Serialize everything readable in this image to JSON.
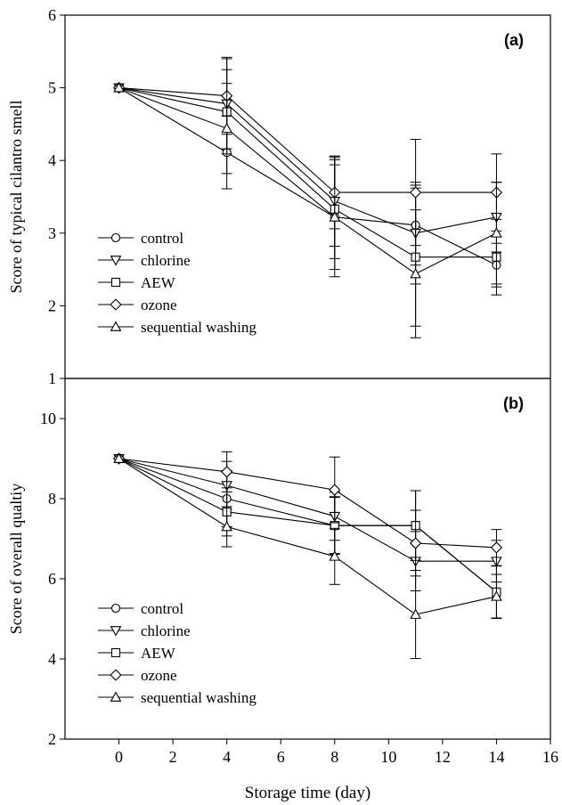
{
  "chart_data": [
    {
      "type": "line",
      "panel_label": "(a)",
      "xlabel": "",
      "ylabel": "Score of typical cilantro smell",
      "xlim": [
        -2,
        16
      ],
      "ylim": [
        1,
        6
      ],
      "yticks": [
        1,
        2,
        3,
        4,
        5,
        6
      ],
      "x": [
        0,
        4,
        8,
        11,
        14
      ],
      "legend_position": "bottom-left",
      "series": [
        {
          "name": "control",
          "marker": "circle",
          "values": [
            5,
            4.11,
            3.22,
            3.11,
            2.56
          ],
          "errors": [
            0,
            0.5,
            0.72,
            0.55,
            0.3
          ]
        },
        {
          "name": "chlorine",
          "marker": "triangle-down",
          "values": [
            5,
            4.78,
            3.44,
            3.0,
            3.22
          ],
          "errors": [
            0,
            0.62,
            0.62,
            0.7,
            0.48
          ]
        },
        {
          "name": "AEW",
          "marker": "square",
          "values": [
            5,
            4.67,
            3.33,
            2.67,
            2.67
          ],
          "errors": [
            0,
            0.58,
            0.68,
            0.95,
            0.52
          ]
        },
        {
          "name": "ozone",
          "marker": "diamond",
          "values": [
            5,
            4.89,
            3.56,
            3.56,
            3.56
          ],
          "errors": [
            0,
            0.53,
            0.5,
            0.73,
            0.53
          ]
        },
        {
          "name": "sequential washing",
          "marker": "triangle-up",
          "values": [
            5,
            4.44,
            3.22,
            2.44,
            3.0
          ],
          "errors": [
            0,
            0.62,
            0.82,
            0.88,
            0.7
          ]
        }
      ]
    },
    {
      "type": "line",
      "panel_label": "(b)",
      "xlabel": "Storage time (day)",
      "ylabel": "Score of overall qualtiy",
      "xlim": [
        -2,
        16
      ],
      "ylim": [
        2,
        11
      ],
      "yticks": [
        2,
        4,
        6,
        8,
        10
      ],
      "xticks": [
        0,
        2,
        4,
        6,
        8,
        10,
        12,
        14,
        16
      ],
      "x": [
        0,
        4,
        8,
        11,
        14
      ],
      "legend_position": "bottom-left",
      "series": [
        {
          "name": "control",
          "marker": "circle",
          "values": [
            9,
            8.0,
            7.33,
            7.33,
            5.67
          ],
          "errors": [
            0,
            0.7,
            0.72,
            0.87,
            0.65
          ]
        },
        {
          "name": "chlorine",
          "marker": "triangle-down",
          "values": [
            9,
            8.33,
            7.56,
            6.44,
            6.44
          ],
          "errors": [
            0,
            0.6,
            0.6,
            0.74,
            0.52
          ]
        },
        {
          "name": "AEW",
          "marker": "square",
          "values": [
            9,
            7.67,
            7.33,
            7.33,
            5.67
          ],
          "errors": [
            0,
            0.6,
            0.7,
            0.87,
            0.65
          ]
        },
        {
          "name": "ozone",
          "marker": "diamond",
          "values": [
            9,
            8.67,
            8.22,
            6.89,
            6.78
          ],
          "errors": [
            0,
            0.5,
            0.82,
            0.82,
            0.45
          ]
        },
        {
          "name": "sequential washing",
          "marker": "triangle-up",
          "values": [
            9,
            7.3,
            6.56,
            5.11,
            5.56
          ],
          "errors": [
            0,
            0.5,
            0.7,
            1.1,
            0.55
          ]
        }
      ]
    }
  ]
}
